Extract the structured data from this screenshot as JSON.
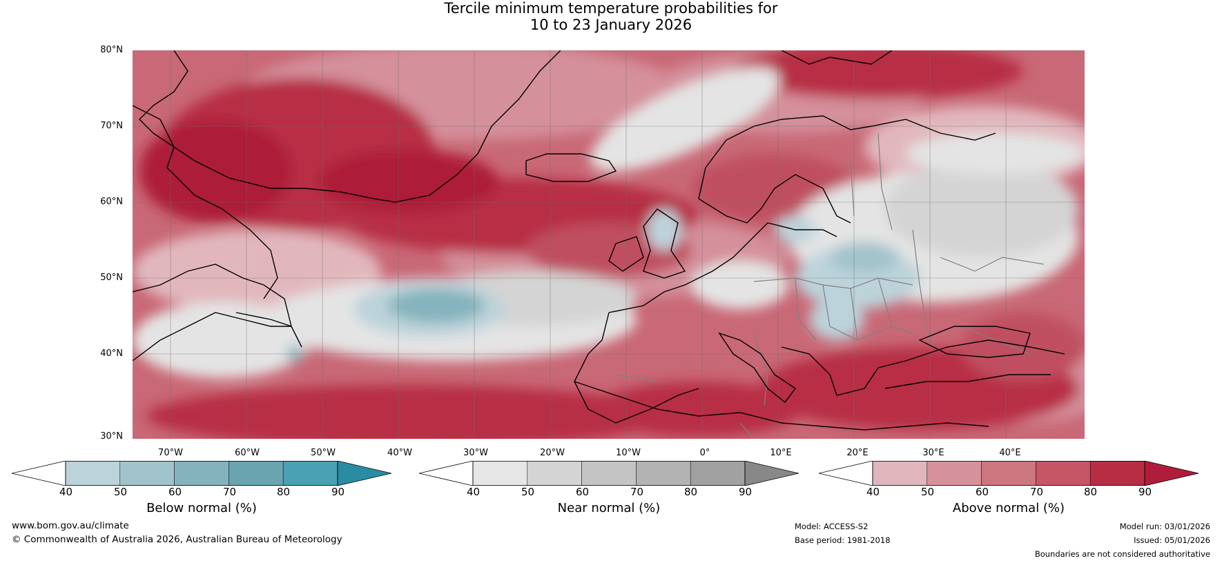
{
  "title": {
    "line1": "Tercile minimum temperature probabilities for",
    "line2": "10 to 23 January 2026"
  },
  "map": {
    "region": "North Atlantic and Europe",
    "lat_labels": [
      "80°N",
      "70°N",
      "60°N",
      "50°N",
      "40°N",
      "30°N"
    ],
    "lon_labels": [
      "70°W",
      "60°W",
      "50°W",
      "40°W",
      "30°W",
      "20°W",
      "10°W",
      "0°",
      "10°E",
      "20°E",
      "30°E",
      "40°E"
    ],
    "colors": {
      "above_40": "#e1b7bd",
      "above_50": "#d4909b",
      "above_60": "#c96876",
      "above_70": "#bf4f60",
      "above_80": "#b72e44",
      "above_90": "#ad1d37",
      "near_40": "#e4e4e4",
      "near_50": "#d4d4d4",
      "near_60": "#c4c4c4",
      "below_40": "#bcd3da",
      "below_50": "#a1c3cb",
      "below_60": "#85b3bd",
      "coast": "#000000",
      "border": "#808080"
    }
  },
  "colorbars": [
    {
      "name": "below",
      "label": "Below normal (%)",
      "ticks": [
        "40",
        "50",
        "60",
        "70",
        "80",
        "90"
      ],
      "colors": [
        "#bcd3da",
        "#a1c3cb",
        "#85b3bd",
        "#69a4b0",
        "#49a1b3",
        "#2a8ca3"
      ]
    },
    {
      "name": "near",
      "label": "Near normal (%)",
      "ticks": [
        "40",
        "50",
        "60",
        "70",
        "80",
        "90"
      ],
      "colors": [
        "#e6e6e6",
        "#d4d4d4",
        "#c4c4c4",
        "#b3b3b3",
        "#a1a1a1",
        "#888888"
      ]
    },
    {
      "name": "above",
      "label": "Above normal (%)",
      "ticks": [
        "40",
        "50",
        "60",
        "70",
        "80",
        "90"
      ],
      "colors": [
        "#e0b5bc",
        "#d5929c",
        "#cc7680",
        "#c65566",
        "#b72e44",
        "#b01d3a"
      ]
    }
  ],
  "footer": {
    "website": "www.bom.gov.au/climate",
    "copyright": "© Commonwealth of Australia 2026, Australian Bureau of Meteorology",
    "model": "Model: ACCESS-S2",
    "base_period": "Base period: 1981-2018",
    "model_run": "Model run: 03/01/2026",
    "issued": "Issued: 05/01/2026",
    "disclaimer": "Boundaries are not considered authoritative"
  }
}
